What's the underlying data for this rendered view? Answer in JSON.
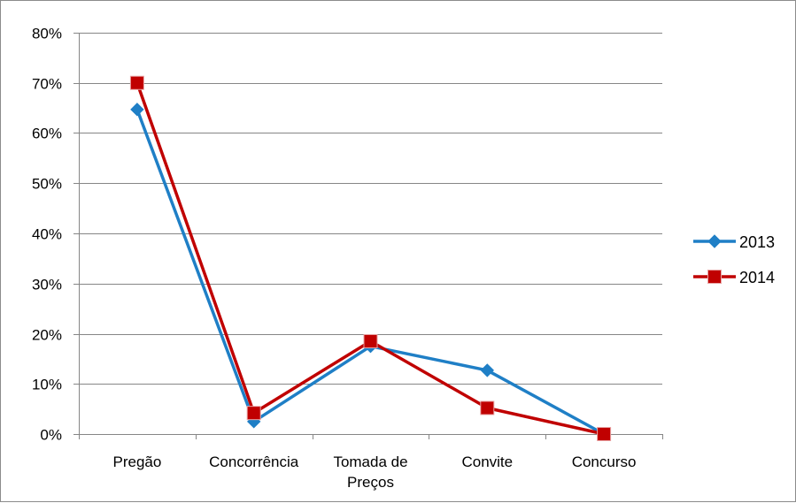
{
  "chart_data": {
    "type": "line",
    "categories": [
      "Pregão",
      "Concorrência",
      "Tomada de Preços",
      "Convite",
      "Concurso"
    ],
    "category_lines": [
      [
        "Pregão"
      ],
      [
        "Concorrência"
      ],
      [
        "Tomada de",
        "Preços"
      ],
      [
        "Convite"
      ],
      [
        "Concurso"
      ]
    ],
    "y_ticks": [
      "0%",
      "10%",
      "20%",
      "30%",
      "40%",
      "50%",
      "60%",
      "70%",
      "80%"
    ],
    "ylim": [
      0,
      0.8
    ],
    "grid": true,
    "legend_position": "right",
    "series": [
      {
        "name": "2013",
        "values": [
          0.647,
          0.025,
          0.175,
          0.127,
          0.0
        ],
        "color": "#1f7fc6",
        "marker": "diamond"
      },
      {
        "name": "2014",
        "values": [
          0.7,
          0.042,
          0.185,
          0.052,
          0.0
        ],
        "color": "#c00000",
        "marker": "square"
      }
    ],
    "title": "",
    "xlabel": "",
    "ylabel": ""
  }
}
